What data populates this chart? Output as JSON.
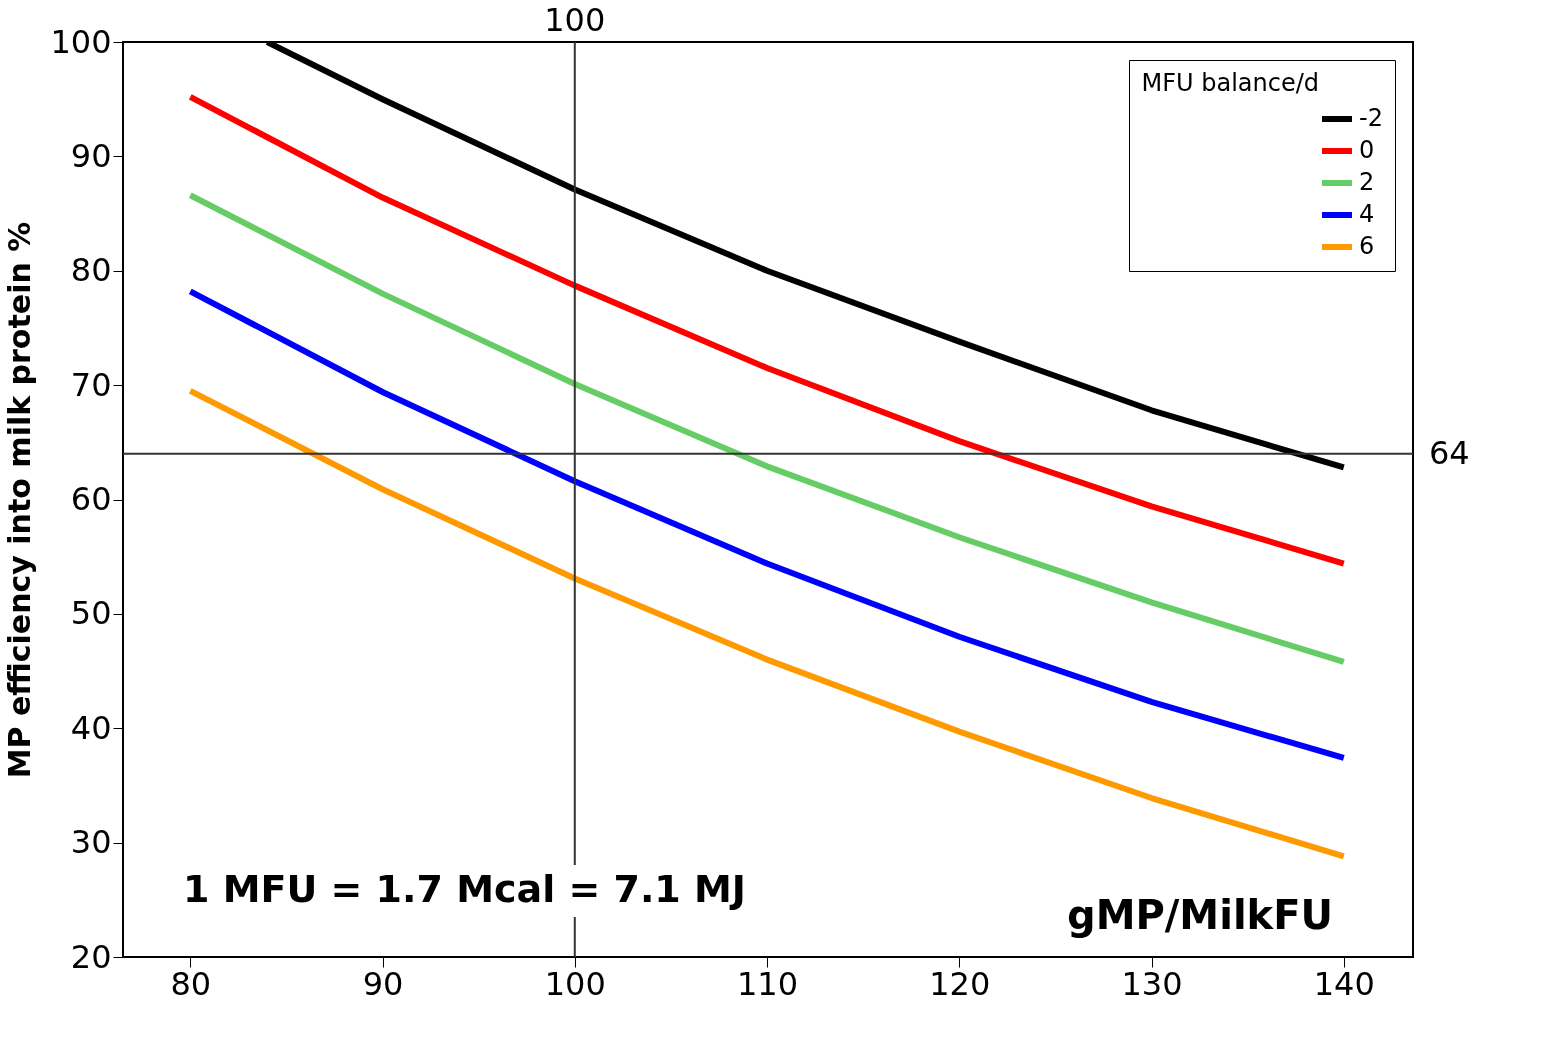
{
  "chart_data": {
    "type": "line",
    "xlabel": "gMP/MilkFU",
    "ylabel": "MP efficiency into milk protein %",
    "legend_title": "MFU balance/d",
    "x": [
      80,
      90,
      100,
      110,
      120,
      130,
      140
    ],
    "xlim": [
      76.5,
      143.6
    ],
    "xticks": [
      80,
      90,
      100,
      110,
      120,
      130,
      140
    ],
    "ylim": [
      20,
      100
    ],
    "yticks": [
      20,
      30,
      40,
      50,
      60,
      70,
      80,
      90,
      100
    ],
    "series": [
      {
        "name": "-2",
        "color": "#000000",
        "x": [
          84,
          90,
          100,
          110,
          120,
          130,
          140
        ],
        "values": [
          100,
          95.0,
          87.1,
          80.0,
          73.8,
          67.8,
          62.8
        ]
      },
      {
        "name": "0",
        "color": "#ff0000",
        "values": [
          95.2,
          86.4,
          78.7,
          71.5,
          65.1,
          59.4,
          54.4
        ]
      },
      {
        "name": "2",
        "color": "#66cc66",
        "values": [
          86.6,
          78.0,
          70.1,
          62.9,
          56.7,
          51.0,
          45.8
        ]
      },
      {
        "name": "4",
        "color": "#0000ff",
        "values": [
          78.2,
          69.4,
          61.6,
          54.4,
          48.0,
          42.3,
          37.4
        ]
      },
      {
        "name": "6",
        "color": "#ff9900",
        "values": [
          69.5,
          60.9,
          53.1,
          46.0,
          39.7,
          33.9,
          28.8
        ]
      }
    ],
    "ref_lines": [
      {
        "axis": "x",
        "value": 100,
        "label": "100",
        "color": "#333333"
      },
      {
        "axis": "y",
        "value": 64,
        "label": "64",
        "color": "#333333"
      }
    ],
    "annotations": [
      "1 MFU = 1.7 Mcal = 7.1 MJ"
    ],
    "legend": "top right",
    "grid": false,
    "marker": "none",
    "line_style": "solid"
  }
}
